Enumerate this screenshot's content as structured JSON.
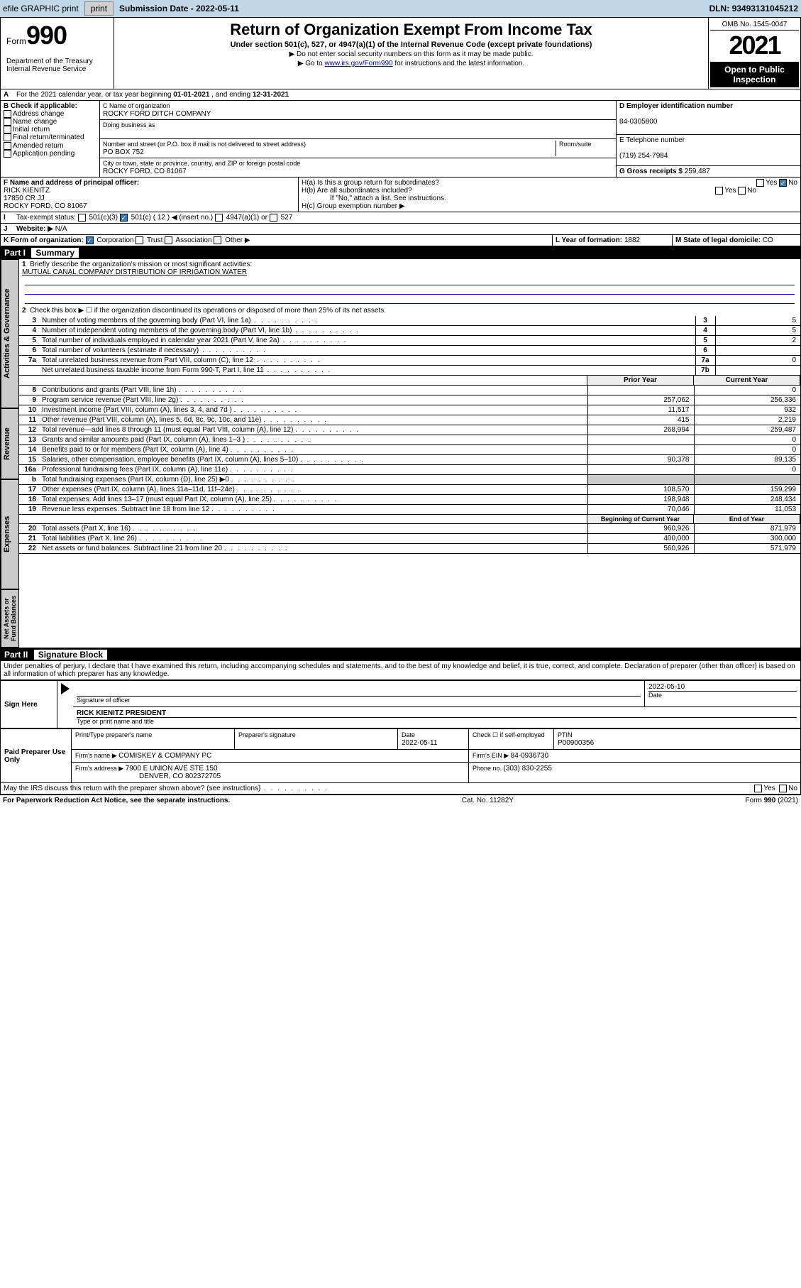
{
  "topbar": {
    "efile": "efile GRAPHIC print",
    "submission_lbl": "Submission Date - ",
    "submission_date": "2022-05-11",
    "dln_lbl": "DLN: ",
    "dln": "93493131045212"
  },
  "header": {
    "form_word": "Form",
    "form_num": "990",
    "dept": "Department of the Treasury Internal Revenue Service",
    "title": "Return of Organization Exempt From Income Tax",
    "subtitle": "Under section 501(c), 527, or 4947(a)(1) of the Internal Revenue Code (except private foundations)",
    "hint1": "▶ Do not enter social security numbers on this form as it may be made public.",
    "hint2_pre": "▶ Go to ",
    "hint2_link": "www.irs.gov/Form990",
    "hint2_post": " for instructions and the latest information.",
    "omb": "OMB No. 1545-0047",
    "year": "2021",
    "public": "Open to Public Inspection"
  },
  "period": {
    "label": "For the 2021 calendar year, or tax year beginning ",
    "begin": "01-01-2021",
    "mid": " , and ending ",
    "end": "12-31-2021"
  },
  "blockB": {
    "title": "B Check if applicable:",
    "opts": [
      "Address change",
      "Name change",
      "Initial return",
      "Final return/terminated",
      "Amended return",
      "Application pending"
    ]
  },
  "blockC": {
    "name_lbl": "C Name of organization",
    "name": "ROCKY FORD DITCH COMPANY",
    "dba_lbl": "Doing business as",
    "addr_lbl": "Number and street (or P.O. box if mail is not delivered to street address)",
    "suite_lbl": "Room/suite",
    "addr": "PO BOX 752",
    "city_lbl": "City or town, state or province, country, and ZIP or foreign postal code",
    "city": "ROCKY FORD, CO  81067"
  },
  "blockD": {
    "lbl": "D Employer identification number",
    "val": "84-0305800"
  },
  "blockE": {
    "lbl": "E Telephone number",
    "val": "(719) 254-7984"
  },
  "blockG": {
    "lbl": "G Gross receipts $ ",
    "val": "259,487"
  },
  "blockF": {
    "lbl": "F Name and address of principal officer:",
    "name": "RICK KIENITZ",
    "addr": "17850 CR JJ",
    "city": "ROCKY FORD, CO  81067"
  },
  "blockH": {
    "ha": "H(a)  Is this a group return for subordinates?",
    "hb": "H(b)  Are all subordinates included?",
    "hb_note": "If \"No,\" attach a list. See instructions.",
    "hc": "H(c)  Group exemption number ▶",
    "yes": "Yes",
    "no": "No"
  },
  "blockI": {
    "lbl": "Tax-exempt status:",
    "opts": [
      "501(c)(3)",
      "501(c) ( 12 ) ◀ (insert no.)",
      "4947(a)(1) or",
      "527"
    ]
  },
  "blockJ": {
    "lbl": "Website: ▶",
    "val": "N/A"
  },
  "blockK": {
    "lbl": "K Form of organization:",
    "opts": [
      "Corporation",
      "Trust",
      "Association",
      "Other ▶"
    ]
  },
  "blockL": {
    "lbl": "L Year of formation: ",
    "val": "1882"
  },
  "blockM": {
    "lbl": "M State of legal domicile: ",
    "val": "CO"
  },
  "part1": {
    "bar_part": "Part I",
    "bar_title": "Summary",
    "line1": "Briefly describe the organization's mission or most significant activities:",
    "mission": "MUTUAL CANAL COMPANY DISTRIBUTION OF IRRIGATION WATER",
    "line2": "Check this box ▶ ☐  if the organization discontinued its operations or disposed of more than 25% of its net assets.",
    "prior": "Prior Year",
    "current": "Current Year",
    "begin": "Beginning of Current Year",
    "end": "End of Year",
    "tabs": {
      "act": "Activities & Governance",
      "rev": "Revenue",
      "exp": "Expenses",
      "net": "Net Assets or Fund Balances"
    },
    "rows_gov": [
      {
        "n": "3",
        "t": "Number of voting members of the governing body (Part VI, line 1a)",
        "box": "3",
        "v": "5"
      },
      {
        "n": "4",
        "t": "Number of independent voting members of the governing body (Part VI, line 1b)",
        "box": "4",
        "v": "5"
      },
      {
        "n": "5",
        "t": "Total number of individuals employed in calendar year 2021 (Part V, line 2a)",
        "box": "5",
        "v": "2"
      },
      {
        "n": "6",
        "t": "Total number of volunteers (estimate if necessary)",
        "box": "6",
        "v": ""
      },
      {
        "n": "7a",
        "t": "Total unrelated business revenue from Part VIII, column (C), line 12",
        "box": "7a",
        "v": "0"
      },
      {
        "n": "",
        "t": "Net unrelated business taxable income from Form 990-T, Part I, line 11",
        "box": "7b",
        "v": ""
      }
    ],
    "rows_rev": [
      {
        "n": "8",
        "t": "Contributions and grants (Part VIII, line 1h)",
        "p": "",
        "c": "0"
      },
      {
        "n": "9",
        "t": "Program service revenue (Part VIII, line 2g)",
        "p": "257,062",
        "c": "256,336"
      },
      {
        "n": "10",
        "t": "Investment income (Part VIII, column (A), lines 3, 4, and 7d )",
        "p": "11,517",
        "c": "932"
      },
      {
        "n": "11",
        "t": "Other revenue (Part VIII, column (A), lines 5, 6d, 8c, 9c, 10c, and 11e)",
        "p": "415",
        "c": "2,219"
      },
      {
        "n": "12",
        "t": "Total revenue—add lines 8 through 11 (must equal Part VIII, column (A), line 12)",
        "p": "268,994",
        "c": "259,487"
      }
    ],
    "rows_exp": [
      {
        "n": "13",
        "t": "Grants and similar amounts paid (Part IX, column (A), lines 1–3 )",
        "p": "",
        "c": "0"
      },
      {
        "n": "14",
        "t": "Benefits paid to or for members (Part IX, column (A), line 4)",
        "p": "",
        "c": "0"
      },
      {
        "n": "15",
        "t": "Salaries, other compensation, employee benefits (Part IX, column (A), lines 5–10)",
        "p": "90,378",
        "c": "89,135"
      },
      {
        "n": "16a",
        "t": "Professional fundraising fees (Part IX, column (A), line 11e)",
        "p": "",
        "c": "0"
      },
      {
        "n": "b",
        "t": "Total fundraising expenses (Part IX, column (D), line 25) ▶0",
        "p": "—",
        "c": "—"
      },
      {
        "n": "17",
        "t": "Other expenses (Part IX, column (A), lines 11a–11d, 11f–24e)",
        "p": "108,570",
        "c": "159,299"
      },
      {
        "n": "18",
        "t": "Total expenses. Add lines 13–17 (must equal Part IX, column (A), line 25)",
        "p": "198,948",
        "c": "248,434"
      },
      {
        "n": "19",
        "t": "Revenue less expenses. Subtract line 18 from line 12",
        "p": "70,046",
        "c": "11,053"
      }
    ],
    "rows_net": [
      {
        "n": "20",
        "t": "Total assets (Part X, line 16)",
        "p": "960,926",
        "c": "871,979"
      },
      {
        "n": "21",
        "t": "Total liabilities (Part X, line 26)",
        "p": "400,000",
        "c": "300,000"
      },
      {
        "n": "22",
        "t": "Net assets or fund balances. Subtract line 21 from line 20",
        "p": "560,926",
        "c": "571,979"
      }
    ]
  },
  "part2": {
    "bar_part": "Part II",
    "bar_title": "Signature Block",
    "decl": "Under penalties of perjury, I declare that I have examined this return, including accompanying schedules and statements, and to the best of my knowledge and belief, it is true, correct, and complete. Declaration of preparer (other than officer) is based on all information of which preparer has any knowledge.",
    "sign_here": "Sign Here",
    "sig_officer": "Signature of officer",
    "date": "Date",
    "sig_date": "2022-05-10",
    "officer": "RICK KIENITZ  PRESIDENT",
    "type_name": "Type or print name and title",
    "paid": "Paid Preparer Use Only",
    "cols": {
      "c1": "Print/Type preparer's name",
      "c2": "Preparer's signature",
      "c3": "Date",
      "c4": "Check ☐ if self-employed",
      "c5": "PTIN"
    },
    "prep_date": "2022-05-11",
    "ptin": "P00900356",
    "firm_name_lbl": "Firm's name    ▶ ",
    "firm_name": "COMISKEY & COMPANY PC",
    "firm_ein_lbl": "Firm's EIN ▶ ",
    "firm_ein": "84-0936730",
    "firm_addr_lbl": "Firm's address ▶ ",
    "firm_addr": "7900 E UNION AVE STE 150",
    "firm_city": "DENVER, CO  802372705",
    "phone_lbl": "Phone no. ",
    "phone": "(303) 830-2255",
    "discuss": "May the IRS discuss this return with the preparer shown above? (see instructions)"
  },
  "footer": {
    "left": "For Paperwork Reduction Act Notice, see the separate instructions.",
    "mid": "Cat. No. 11282Y",
    "right": "Form 990 (2021)"
  },
  "colors": {
    "barblue": "#c0d8e8",
    "tabgray": "#cccccc",
    "link": "#0000cc"
  }
}
